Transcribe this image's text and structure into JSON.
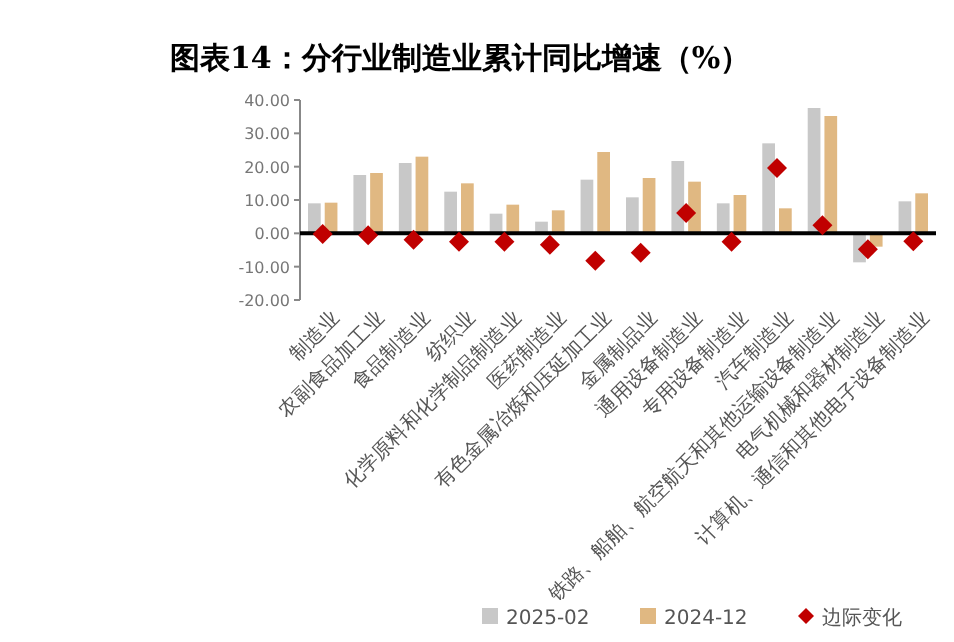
{
  "chart_data": {
    "type": "bar",
    "title": "图表14：分行业制造业累计同比增速（%）",
    "categories": [
      "制造业",
      "农副食品加工业",
      "食品制造业",
      "纺织业",
      "化学原料和化学制品制造业",
      "医药制造业",
      "有色金属冶炼和压延加工业",
      "金属制品业",
      "通用设备制造业",
      "专用设备制造业",
      "汽车制造业",
      "铁路、船舶、航空航天和其他运输设备制造业",
      "电气机械和器材制造业",
      "计算机、通信和其他电子设备制造业"
    ],
    "series": [
      {
        "name": "2025-02",
        "color": "#c8c8c8",
        "values": [
          9.0,
          17.5,
          21.1,
          12.5,
          5.9,
          3.5,
          16.1,
          10.8,
          21.7,
          9.0,
          27.0,
          37.6,
          -8.7,
          9.6
        ]
      },
      {
        "name": "2024-12",
        "color": "#e0b882",
        "values": [
          9.2,
          18.1,
          23.0,
          15.0,
          8.6,
          6.9,
          24.4,
          16.6,
          15.5,
          11.5,
          7.5,
          35.2,
          -4.0,
          12.0
        ]
      },
      {
        "name": "边际变化",
        "color": "#c00000",
        "type": "scatter",
        "marker": "diamond",
        "values": [
          -0.2,
          -0.6,
          -1.9,
          -2.5,
          -2.5,
          -3.4,
          -8.2,
          -5.8,
          6.1,
          -2.5,
          19.6,
          2.4,
          -4.8,
          -2.4
        ]
      }
    ],
    "ylim": [
      -20,
      40
    ],
    "yticks": [
      {
        "value": -20,
        "label": "-20.00"
      },
      {
        "value": -10,
        "label": "-10.00"
      },
      {
        "value": 0,
        "label": "0.00"
      },
      {
        "value": 10,
        "label": "10.00"
      },
      {
        "value": 20,
        "label": "20.00"
      },
      {
        "value": 30,
        "label": "30.00"
      },
      {
        "value": 40,
        "label": "40.00"
      }
    ],
    "legend": "bottom"
  }
}
